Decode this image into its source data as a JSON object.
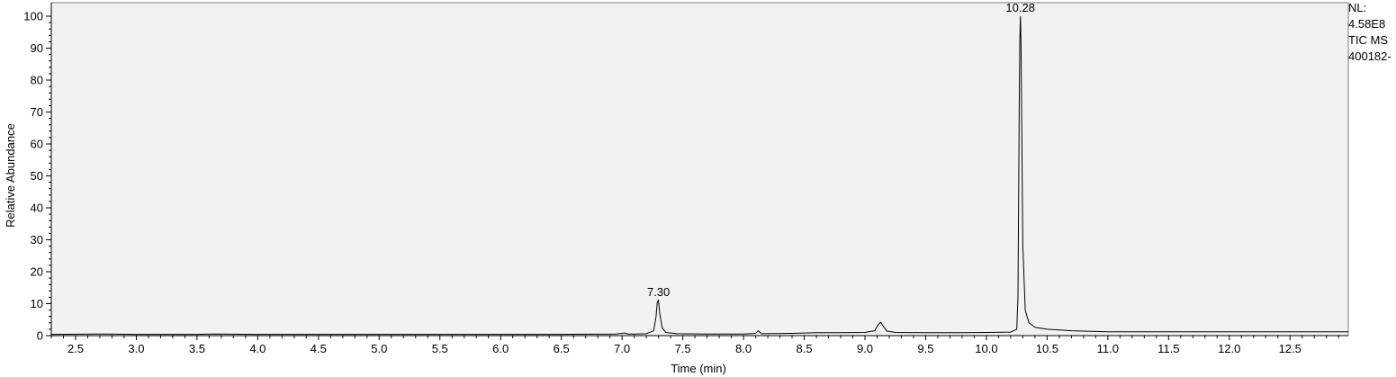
{
  "chart_data": {
    "type": "line",
    "xlabel": "Time (min)",
    "ylabel": "Relative Abundance",
    "xlim": [
      2.3,
      12.98
    ],
    "ylim": [
      0,
      100
    ],
    "x_ticks": [
      "2.5",
      "3.0",
      "3.5",
      "4.0",
      "4.5",
      "5.0",
      "5.5",
      "6.0",
      "6.5",
      "7.0",
      "7.5",
      "8.0",
      "8.5",
      "9.0",
      "9.5",
      "10.0",
      "10.5",
      "11.0",
      "11.5",
      "12.0",
      "12.5"
    ],
    "y_ticks": [
      "0",
      "10",
      "20",
      "30",
      "40",
      "50",
      "60",
      "70",
      "80",
      "90",
      "100"
    ],
    "peak_labels": [
      {
        "x": 7.3,
        "y": 11,
        "text": "7.30"
      },
      {
        "x": 10.28,
        "y": 100,
        "text": "10.28"
      }
    ],
    "side_notes": [
      "NL:",
      "4.58E8",
      "TIC  MS",
      "400182-"
    ],
    "colors": {
      "plot_background": "#f2f2f2",
      "trace": "#000000",
      "axis": "#000000"
    },
    "series": [
      {
        "x": [
          2.3,
          2.7,
          3.0,
          3.5,
          3.64,
          4.0,
          4.5,
          5.0,
          5.5,
          6.0,
          6.5,
          6.95,
          7.02,
          7.05,
          7.1,
          7.2,
          7.26,
          7.28,
          7.29,
          7.3,
          7.31,
          7.33,
          7.36,
          7.45,
          7.7,
          8.0,
          8.1,
          8.12,
          8.15,
          8.4,
          8.6,
          8.8,
          9.0,
          9.08,
          9.11,
          9.13,
          9.15,
          9.18,
          9.25,
          9.5,
          9.8,
          10.0,
          10.2,
          10.25,
          10.26,
          10.27,
          10.275,
          10.28,
          10.285,
          10.29,
          10.3,
          10.32,
          10.35,
          10.4,
          10.5,
          10.7,
          11.0,
          11.5,
          12.0,
          12.5,
          12.98
        ],
        "y": [
          0.4,
          0.5,
          0.4,
          0.4,
          0.5,
          0.4,
          0.4,
          0.4,
          0.4,
          0.4,
          0.4,
          0.5,
          0.8,
          0.5,
          0.5,
          0.6,
          1.5,
          6.0,
          10.5,
          11.0,
          7.0,
          2.5,
          1.0,
          0.6,
          0.5,
          0.5,
          0.7,
          1.5,
          0.6,
          0.7,
          0.9,
          0.9,
          1.0,
          1.5,
          3.5,
          4.2,
          3.0,
          1.4,
          1.0,
          0.9,
          0.9,
          1.0,
          1.1,
          2.0,
          12.0,
          70.0,
          92.0,
          100.0,
          92.0,
          70.0,
          28.0,
          8.0,
          4.0,
          2.6,
          2.0,
          1.5,
          1.2,
          1.2,
          1.2,
          1.2,
          1.2
        ]
      }
    ]
  }
}
